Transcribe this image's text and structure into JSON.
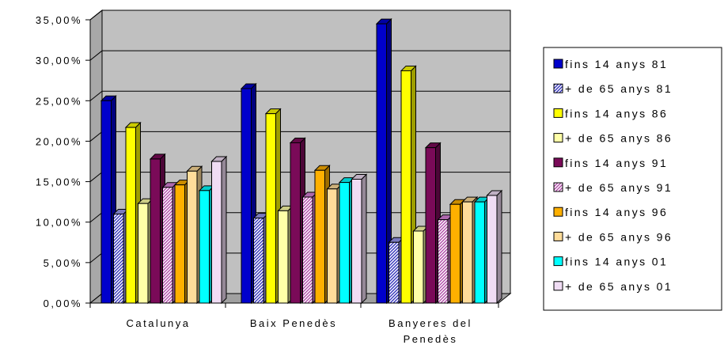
{
  "chart_data": {
    "type": "bar",
    "categories": [
      [
        "Catalunya"
      ],
      [
        "Baix Penedès"
      ],
      [
        "Banyeres del",
        "Penedès"
      ]
    ],
    "yticks": [
      "0,00%",
      "5,00%",
      "10,00%",
      "15,00%",
      "20,00%",
      "25,00%",
      "30,00%",
      "35,00%"
    ],
    "ylim": [
      0,
      35
    ],
    "series": [
      {
        "name": "fins 14 anys 81",
        "color": "#0000cc",
        "pattern": "solid",
        "values": [
          25.0,
          26.5,
          34.5
        ]
      },
      {
        "name": "+ de 65 anys 81",
        "color": "#8f8fdf",
        "pattern": "hatch",
        "values": [
          11.0,
          10.5,
          7.5
        ]
      },
      {
        "name": "fins 14 anys 86",
        "color": "#ffff00",
        "pattern": "solid",
        "values": [
          21.7,
          23.4,
          28.7
        ]
      },
      {
        "name": "+ de 65 anys 86",
        "color": "#ffffa8",
        "pattern": "solid",
        "values": [
          12.3,
          11.4,
          8.9
        ]
      },
      {
        "name": "fins 14 anys 91",
        "color": "#7a0a58",
        "pattern": "solid",
        "values": [
          17.8,
          19.8,
          19.2
        ]
      },
      {
        "name": "+ de 65 anys 91",
        "color": "#cc7acc",
        "pattern": "hatch",
        "values": [
          14.3,
          13.1,
          10.3
        ]
      },
      {
        "name": "fins 14 anys 96",
        "color": "#ffb000",
        "pattern": "solid",
        "values": [
          14.6,
          16.4,
          12.2
        ]
      },
      {
        "name": "+ de 65 anys 96",
        "color": "#ffdc9a",
        "pattern": "solid",
        "values": [
          16.3,
          14.1,
          12.5
        ]
      },
      {
        "name": "fins 14 anys 01",
        "color": "#00ffff",
        "pattern": "solid",
        "values": [
          13.9,
          14.9,
          12.5
        ]
      },
      {
        "name": "+ de 65 anys 01",
        "color": "#f0dcf4",
        "pattern": "solid",
        "values": [
          17.5,
          15.3,
          13.3
        ]
      }
    ],
    "grid": true,
    "legend_position": "right"
  }
}
